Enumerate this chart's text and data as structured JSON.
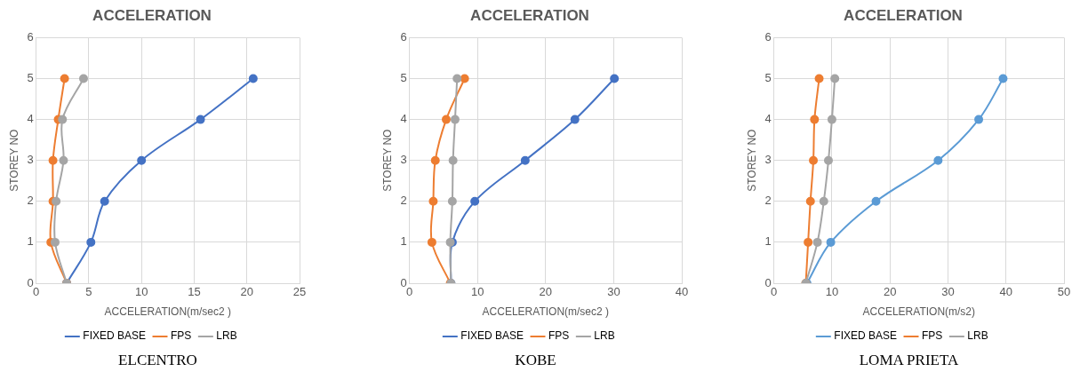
{
  "chart_data": [
    {
      "type": "line",
      "title": "ACCELERATION",
      "xlabel": "ACCELERATION(m/sec2 )",
      "ylabel": "STOREY NO",
      "xlim": [
        0,
        25
      ],
      "xticks": [
        0,
        5,
        10,
        15,
        20,
        25
      ],
      "ylim": [
        0,
        6
      ],
      "yticks": [
        0,
        1,
        2,
        3,
        4,
        5,
        6
      ],
      "grid": true,
      "legend": "bottom",
      "marker": "circle",
      "annotations": [
        "ELCENTRO"
      ],
      "series": [
        {
          "name": "FIXED BASE",
          "color": "#4472c4",
          "x": [
            2.9,
            5.2,
            6.5,
            10.0,
            15.6,
            20.6
          ],
          "values": [
            0,
            1,
            2,
            3,
            4,
            5
          ]
        },
        {
          "name": "FPS",
          "color": "#ed7d31",
          "x": [
            2.9,
            1.4,
            1.6,
            1.6,
            2.1,
            2.7
          ],
          "values": [
            0,
            1,
            2,
            3,
            4,
            5
          ]
        },
        {
          "name": "LRB",
          "color": "#a5a5a5",
          "x": [
            2.9,
            1.8,
            1.9,
            2.6,
            2.5,
            4.5
          ],
          "values": [
            0,
            1,
            2,
            3,
            4,
            5
          ]
        }
      ]
    },
    {
      "type": "line",
      "title": "ACCELERATION",
      "xlabel": "ACCELERATION(m/sec2 )",
      "ylabel": "STOREY NO",
      "xlim": [
        0,
        40
      ],
      "xticks": [
        0,
        10,
        20,
        30,
        40
      ],
      "ylim": [
        0,
        6
      ],
      "yticks": [
        0,
        1,
        2,
        3,
        4,
        5,
        6
      ],
      "grid": true,
      "legend": "bottom",
      "marker": "circle",
      "annotations": [
        "KOBE"
      ],
      "series": [
        {
          "name": "FIXED BASE",
          "color": "#4472c4",
          "x": [
            6.1,
            6.3,
            9.6,
            17.0,
            24.3,
            30.1
          ],
          "values": [
            0,
            1,
            2,
            3,
            4,
            5
          ]
        },
        {
          "name": "FPS",
          "color": "#ed7d31",
          "x": [
            6.0,
            3.3,
            3.5,
            3.8,
            5.4,
            8.1
          ],
          "values": [
            0,
            1,
            2,
            3,
            4,
            5
          ]
        },
        {
          "name": "LRB",
          "color": "#a5a5a5",
          "x": [
            6.1,
            6.0,
            6.3,
            6.4,
            6.7,
            7.0
          ],
          "values": [
            0,
            1,
            2,
            3,
            4,
            5
          ]
        }
      ]
    },
    {
      "type": "line",
      "title": "ACCELERATION",
      "xlabel": "ACCELERATION(m/s2)",
      "ylabel": "STOREY NO",
      "xlim": [
        0,
        50
      ],
      "xticks": [
        0,
        10,
        20,
        30,
        40,
        50
      ],
      "ylim": [
        0,
        6
      ],
      "yticks": [
        0,
        1,
        2,
        3,
        4,
        5,
        6
      ],
      "grid": true,
      "legend": "bottom",
      "marker": "circle",
      "annotations": [
        "LOMA PRIETA"
      ],
      "series": [
        {
          "name": "FIXED BASE",
          "color": "#5b9bd5",
          "x": [
            5.7,
            9.8,
            17.6,
            28.3,
            35.3,
            39.5
          ],
          "values": [
            0,
            1,
            2,
            3,
            4,
            5
          ]
        },
        {
          "name": "FPS",
          "color": "#ed7d31",
          "x": [
            5.5,
            5.9,
            6.3,
            6.8,
            7.0,
            7.8
          ],
          "values": [
            0,
            1,
            2,
            3,
            4,
            5
          ]
        },
        {
          "name": "LRB",
          "color": "#a5a5a5",
          "x": [
            5.5,
            7.5,
            8.6,
            9.4,
            10.0,
            10.5
          ],
          "values": [
            0,
            1,
            2,
            3,
            4,
            5
          ]
        }
      ]
    }
  ]
}
